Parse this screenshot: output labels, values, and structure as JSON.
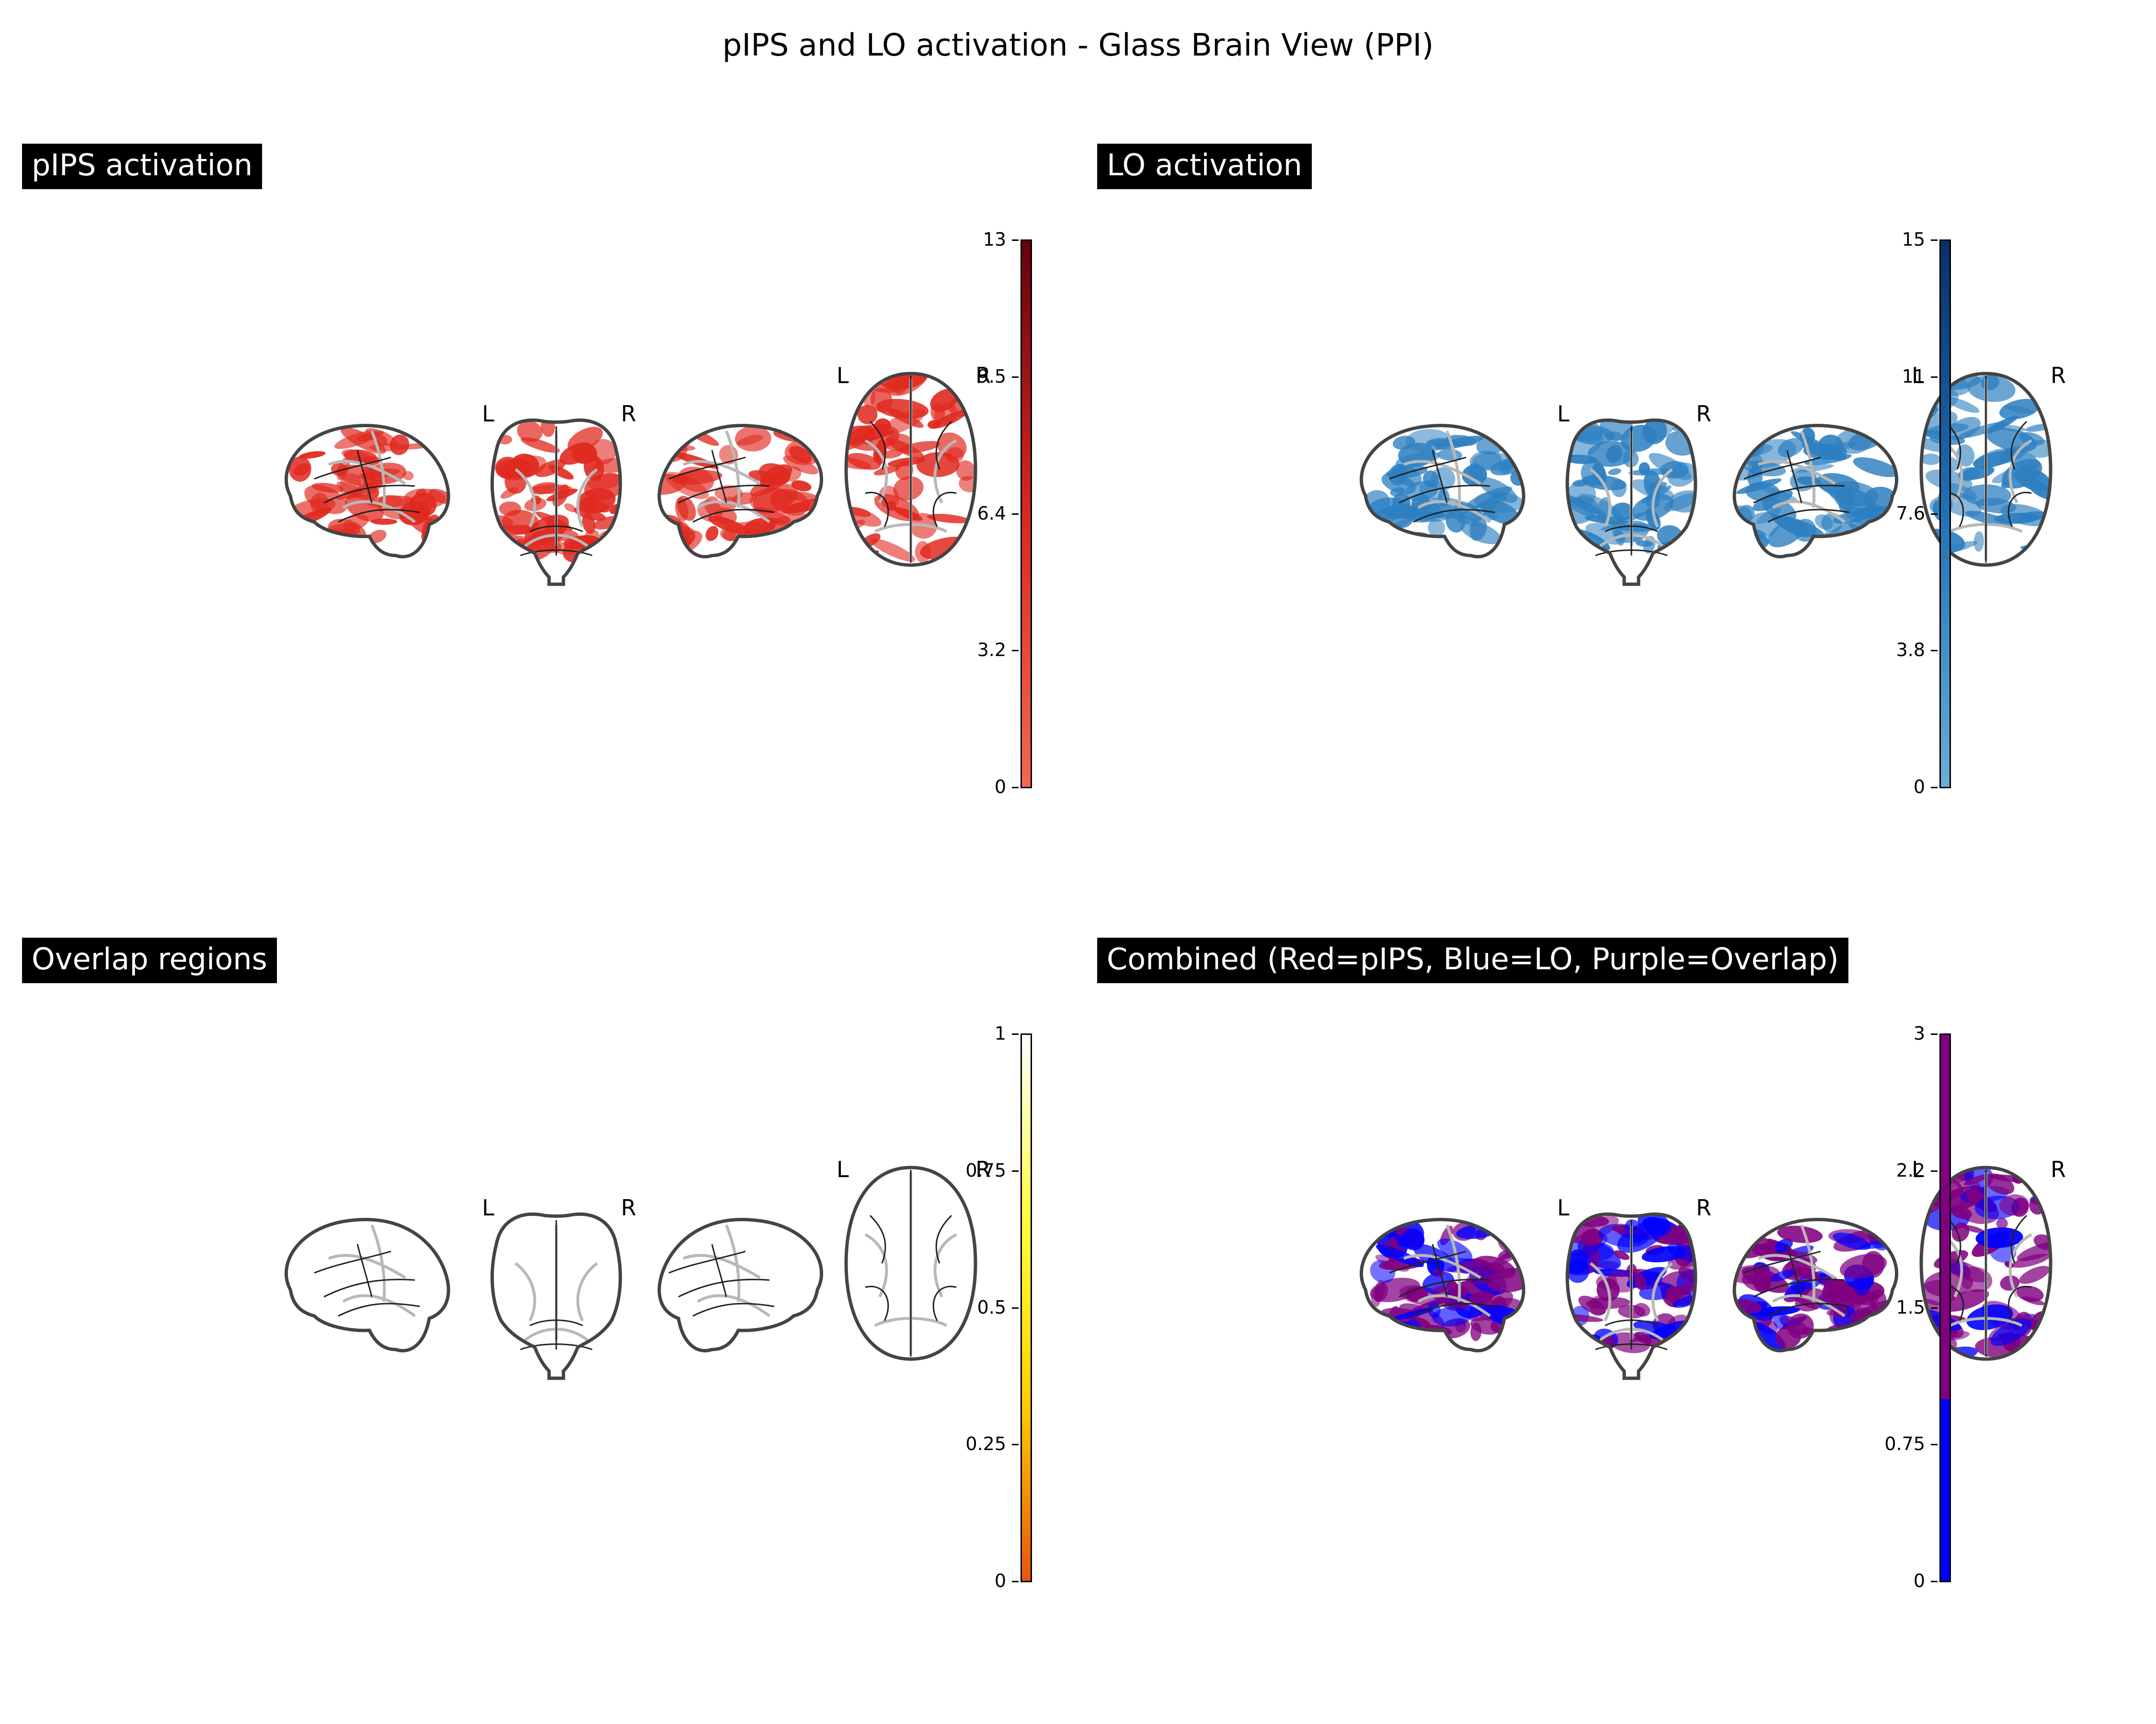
{
  "figure": {
    "title": "pIPS and LO activation - Glass Brain View (PPI)"
  },
  "panels": [
    {
      "title": "pIPS activation",
      "colorbar": {
        "ticks": [
          "0",
          "3.2",
          "6.4",
          "9.5",
          "13"
        ],
        "colors": [
          "#f26a4f",
          "#d62a20",
          "#67000d"
        ]
      },
      "activation_color": "#e0291f",
      "hemisphere_labels": [
        "L",
        "R",
        "L",
        "R"
      ]
    },
    {
      "title": "LO activation",
      "colorbar": {
        "ticks": [
          "0",
          "3.8",
          "7.6",
          "11",
          "15"
        ],
        "colors": [
          "#6aaed6",
          "#2171b5",
          "#08306b"
        ]
      },
      "activation_color": "#2d7fc0",
      "hemisphere_labels": [
        "L",
        "R",
        "L",
        "R"
      ]
    },
    {
      "title": "Overlap regions",
      "colorbar": {
        "ticks": [
          "0",
          "0.25",
          "0.5",
          "0.75",
          "1"
        ],
        "colors": [
          "#e8540c",
          "#ffd000",
          "#ffff40",
          "#ffffff"
        ]
      },
      "activation_color": "none",
      "hemisphere_labels": [
        "L",
        "R",
        "L",
        "R"
      ]
    },
    {
      "title": "Combined (Red=pIPS, Blue=LO, Purple=Overlap)",
      "colorbar": {
        "ticks": [
          "0",
          "0.75",
          "1.5",
          "2.2",
          "3"
        ],
        "colors": [
          "#0000ff",
          "#800080"
        ]
      },
      "activation_color": "#800080",
      "secondary_color": "#0000ff",
      "hemisphere_labels": [
        "L",
        "R",
        "L",
        "R"
      ]
    }
  ]
}
